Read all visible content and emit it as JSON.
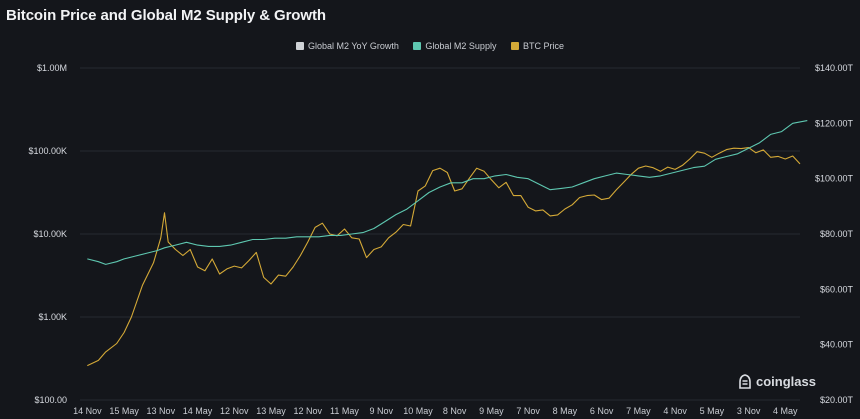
{
  "chart_data": {
    "type": "line",
    "title": "Bitcoin Price and Global M2 Supply & Growth",
    "legend": {
      "placement": "top-center",
      "entries": [
        {
          "name": "Global M2 YoY Growth",
          "color": "#cfd2d6"
        },
        {
          "name": "Global M2 Supply",
          "color": "#5ec7b0"
        },
        {
          "name": "BTC Price",
          "color": "#d4a937"
        }
      ]
    },
    "x_ticks": [
      "14 Nov",
      "15 May",
      "13 Nov",
      "14 May",
      "12 Nov",
      "13 May",
      "12 Nov",
      "11 May",
      "9 Nov",
      "10 May",
      "8 Nov",
      "9 May",
      "7 Nov",
      "8 May",
      "6 Nov",
      "7 May",
      "4 Nov",
      "5 May",
      "3 Nov",
      "4 May"
    ],
    "y_left": {
      "scale": "log",
      "range": [
        100,
        1000000
      ],
      "ticks": [
        "$100.00",
        "$1.00K",
        "$10.00K",
        "$100.00K",
        "$1.00M"
      ],
      "tick_values": [
        100,
        1000,
        10000,
        100000,
        1000000
      ]
    },
    "y_right": {
      "scale": "linear",
      "range": [
        20,
        140
      ],
      "ticks": [
        "$20.00T",
        "$40.00T",
        "$60.00T",
        "$80.00T",
        "$100.00T",
        "$120.00T",
        "$140.00T"
      ],
      "tick_values": [
        20,
        40,
        60,
        80,
        100,
        120,
        140
      ]
    },
    "grid": true,
    "series": [
      {
        "name": "BTC Price",
        "axis": "left",
        "color": "#d4a937",
        "values": [
          [
            0,
            260
          ],
          [
            0.3,
            300
          ],
          [
            0.5,
            380
          ],
          [
            0.8,
            480
          ],
          [
            1.0,
            650
          ],
          [
            1.2,
            1000
          ],
          [
            1.5,
            2400
          ],
          [
            1.8,
            4500
          ],
          [
            2.0,
            9000
          ],
          [
            2.1,
            18000
          ],
          [
            2.2,
            8000
          ],
          [
            2.4,
            6500
          ],
          [
            2.6,
            5500
          ],
          [
            2.8,
            6500
          ],
          [
            3.0,
            4000
          ],
          [
            3.2,
            3600
          ],
          [
            3.4,
            5000
          ],
          [
            3.6,
            3300
          ],
          [
            3.8,
            3800
          ],
          [
            4.0,
            4100
          ],
          [
            4.2,
            3900
          ],
          [
            4.4,
            4800
          ],
          [
            4.6,
            6000
          ],
          [
            4.8,
            3000
          ],
          [
            5.0,
            2500
          ],
          [
            5.2,
            3200
          ],
          [
            5.4,
            3100
          ],
          [
            5.6,
            4000
          ],
          [
            5.8,
            5500
          ],
          [
            6.0,
            8000
          ],
          [
            6.2,
            12000
          ],
          [
            6.4,
            13500
          ],
          [
            6.6,
            10000
          ],
          [
            6.8,
            9500
          ],
          [
            7.0,
            11500
          ],
          [
            7.2,
            9000
          ],
          [
            7.4,
            8700
          ],
          [
            7.6,
            5200
          ],
          [
            7.8,
            6500
          ],
          [
            8.0,
            7000
          ],
          [
            8.2,
            9000
          ],
          [
            8.4,
            10500
          ],
          [
            8.6,
            13000
          ],
          [
            8.8,
            12500
          ],
          [
            9.0,
            33000
          ],
          [
            9.2,
            38000
          ],
          [
            9.4,
            58000
          ],
          [
            9.6,
            62000
          ],
          [
            9.8,
            55000
          ],
          [
            10.0,
            33000
          ],
          [
            10.2,
            35000
          ],
          [
            10.4,
            47000
          ],
          [
            10.6,
            62000
          ],
          [
            10.8,
            57000
          ],
          [
            11.0,
            45000
          ],
          [
            11.2,
            36000
          ],
          [
            11.4,
            42000
          ],
          [
            11.6,
            29000
          ],
          [
            11.8,
            29000
          ],
          [
            12.0,
            21000
          ],
          [
            12.2,
            19000
          ],
          [
            12.4,
            19500
          ],
          [
            12.6,
            16500
          ],
          [
            12.8,
            17000
          ],
          [
            13.0,
            20000
          ],
          [
            13.2,
            22500
          ],
          [
            13.4,
            27500
          ],
          [
            13.6,
            29000
          ],
          [
            13.8,
            29500
          ],
          [
            14.0,
            26000
          ],
          [
            14.2,
            27000
          ],
          [
            14.4,
            34000
          ],
          [
            14.6,
            42000
          ],
          [
            14.8,
            52000
          ],
          [
            15.0,
            62000
          ],
          [
            15.2,
            66000
          ],
          [
            15.4,
            63000
          ],
          [
            15.6,
            57000
          ],
          [
            15.8,
            64000
          ],
          [
            16.0,
            60000
          ],
          [
            16.2,
            67000
          ],
          [
            16.4,
            80000
          ],
          [
            16.6,
            98000
          ],
          [
            16.8,
            94000
          ],
          [
            17.0,
            84000
          ],
          [
            17.2,
            94000
          ],
          [
            17.4,
            104000
          ],
          [
            17.6,
            108000
          ],
          [
            17.8,
            107000
          ],
          [
            18.0,
            110000
          ],
          [
            18.2,
            95000
          ],
          [
            18.4,
            103000
          ],
          [
            18.6,
            84000
          ],
          [
            18.8,
            86000
          ],
          [
            19.0,
            80000
          ],
          [
            19.2,
            87000
          ],
          [
            19.4,
            70000
          ]
        ]
      },
      {
        "name": "Global M2 Supply",
        "axis": "right",
        "color": "#5ec7b0",
        "values": [
          [
            0,
            71
          ],
          [
            0.3,
            70
          ],
          [
            0.5,
            69
          ],
          [
            0.8,
            70
          ],
          [
            1.0,
            71
          ],
          [
            1.3,
            72
          ],
          [
            1.6,
            73
          ],
          [
            1.9,
            74
          ],
          [
            2.1,
            75
          ],
          [
            2.4,
            76
          ],
          [
            2.7,
            77
          ],
          [
            3.0,
            76
          ],
          [
            3.3,
            75.5
          ],
          [
            3.6,
            75.5
          ],
          [
            3.9,
            76
          ],
          [
            4.2,
            77
          ],
          [
            4.5,
            78
          ],
          [
            4.8,
            78
          ],
          [
            5.1,
            78.5
          ],
          [
            5.4,
            78.5
          ],
          [
            5.7,
            79
          ],
          [
            6.0,
            79
          ],
          [
            6.3,
            79
          ],
          [
            6.6,
            79.5
          ],
          [
            6.9,
            79.5
          ],
          [
            7.2,
            80
          ],
          [
            7.5,
            80.5
          ],
          [
            7.8,
            82
          ],
          [
            8.1,
            84.5
          ],
          [
            8.4,
            87
          ],
          [
            8.7,
            89
          ],
          [
            9.0,
            92
          ],
          [
            9.3,
            95
          ],
          [
            9.6,
            97
          ],
          [
            9.9,
            98.5
          ],
          [
            10.2,
            98.5
          ],
          [
            10.5,
            100
          ],
          [
            10.8,
            100
          ],
          [
            11.1,
            101
          ],
          [
            11.4,
            101.5
          ],
          [
            11.7,
            100.5
          ],
          [
            12.0,
            100
          ],
          [
            12.3,
            98
          ],
          [
            12.6,
            96
          ],
          [
            12.9,
            96.5
          ],
          [
            13.2,
            97
          ],
          [
            13.5,
            98.5
          ],
          [
            13.8,
            100
          ],
          [
            14.1,
            101
          ],
          [
            14.4,
            102
          ],
          [
            14.7,
            101.5
          ],
          [
            15.0,
            101
          ],
          [
            15.3,
            100.5
          ],
          [
            15.6,
            101
          ],
          [
            15.9,
            102
          ],
          [
            16.2,
            103
          ],
          [
            16.5,
            104
          ],
          [
            16.8,
            104.5
          ],
          [
            17.1,
            107
          ],
          [
            17.4,
            108
          ],
          [
            17.7,
            109
          ],
          [
            18.0,
            111
          ],
          [
            18.3,
            113
          ],
          [
            18.6,
            116
          ],
          [
            18.9,
            117
          ],
          [
            19.2,
            120
          ],
          [
            19.6,
            121
          ]
        ]
      }
    ]
  },
  "brand": {
    "name": "coinglass",
    "icon": "coinglass-logo-icon"
  }
}
